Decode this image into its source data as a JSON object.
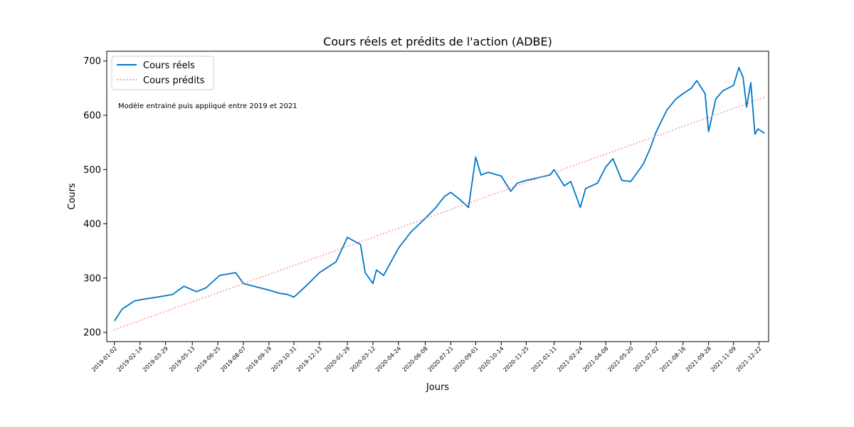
{
  "chart_data": {
    "type": "line",
    "title": "Cours réels et prédits de l'action (ADBE)",
    "xlabel": "Jours",
    "ylabel": "Cours",
    "annotation": "Modèle entrainé puis appliqué entre 2019 et 2021",
    "x_range": [
      "2018-12-20",
      "2022-01-07"
    ],
    "ylim": [
      183,
      718
    ],
    "y_ticks": [
      200,
      300,
      400,
      500,
      600,
      700
    ],
    "x_ticks": [
      "2019-01-02",
      "2019-02-14",
      "2019-03-29",
      "2019-05-13",
      "2019-06-25",
      "2019-08-07",
      "2019-09-19",
      "2019-10-31",
      "2019-12-13",
      "2020-01-29",
      "2020-03-12",
      "2020-04-24",
      "2020-06-08",
      "2020-07-21",
      "2020-09-01",
      "2020-10-14",
      "2020-11-25",
      "2021-01-11",
      "2021-02-24",
      "2021-04-08",
      "2021-05-20",
      "2021-07-02",
      "2021-08-16",
      "2021-09-28",
      "2021-11-09",
      "2021-12-22"
    ],
    "grid": false,
    "legend": "top-left",
    "series": [
      {
        "name": "Cours réels",
        "color": "#0077c8",
        "style": "solid",
        "x": [
          "2019-01-02",
          "2019-01-15",
          "2019-02-05",
          "2019-02-25",
          "2019-03-15",
          "2019-04-10",
          "2019-04-29",
          "2019-05-20",
          "2019-06-05",
          "2019-06-28",
          "2019-07-25",
          "2019-08-07",
          "2019-08-28",
          "2019-09-19",
          "2019-10-07",
          "2019-10-20",
          "2019-10-31",
          "2019-11-20",
          "2019-12-13",
          "2020-01-10",
          "2020-01-29",
          "2020-02-20",
          "2020-02-28",
          "2020-03-12",
          "2020-03-18",
          "2020-03-30",
          "2020-04-24",
          "2020-05-15",
          "2020-06-08",
          "2020-06-26",
          "2020-07-10",
          "2020-07-21",
          "2020-08-05",
          "2020-08-20",
          "2020-09-01",
          "2020-09-10",
          "2020-09-22",
          "2020-10-14",
          "2020-10-30",
          "2020-11-10",
          "2020-11-25",
          "2020-12-15",
          "2021-01-04",
          "2021-01-11",
          "2021-01-28",
          "2021-02-08",
          "2021-02-24",
          "2021-03-05",
          "2021-03-25",
          "2021-04-08",
          "2021-04-20",
          "2021-05-05",
          "2021-05-20",
          "2021-06-10",
          "2021-06-22",
          "2021-07-02",
          "2021-07-20",
          "2021-08-04",
          "2021-08-16",
          "2021-08-30",
          "2021-09-08",
          "2021-09-22",
          "2021-09-28",
          "2021-10-10",
          "2021-10-22",
          "2021-11-09",
          "2021-11-18",
          "2021-11-25",
          "2021-12-01",
          "2021-12-08",
          "2021-12-15",
          "2021-12-20",
          "2021-12-31"
        ],
        "values": [
          221,
          243,
          258,
          262,
          265,
          270,
          285,
          275,
          282,
          305,
          310,
          290,
          284,
          278,
          272,
          270,
          265,
          285,
          310,
          330,
          375,
          362,
          310,
          290,
          315,
          305,
          355,
          385,
          410,
          430,
          450,
          458,
          445,
          430,
          523,
          490,
          495,
          488,
          460,
          475,
          480,
          485,
          490,
          500,
          470,
          478,
          430,
          465,
          475,
          505,
          520,
          480,
          478,
          510,
          540,
          570,
          610,
          630,
          640,
          650,
          664,
          640,
          570,
          630,
          645,
          655,
          688,
          670,
          615,
          660,
          565,
          575,
          567
        ]
      },
      {
        "name": "Cours prédits",
        "color": "#ff8080",
        "style": "dotted",
        "x": [
          "2019-01-02",
          "2021-12-31"
        ],
        "values": [
          205,
          633
        ]
      }
    ]
  }
}
